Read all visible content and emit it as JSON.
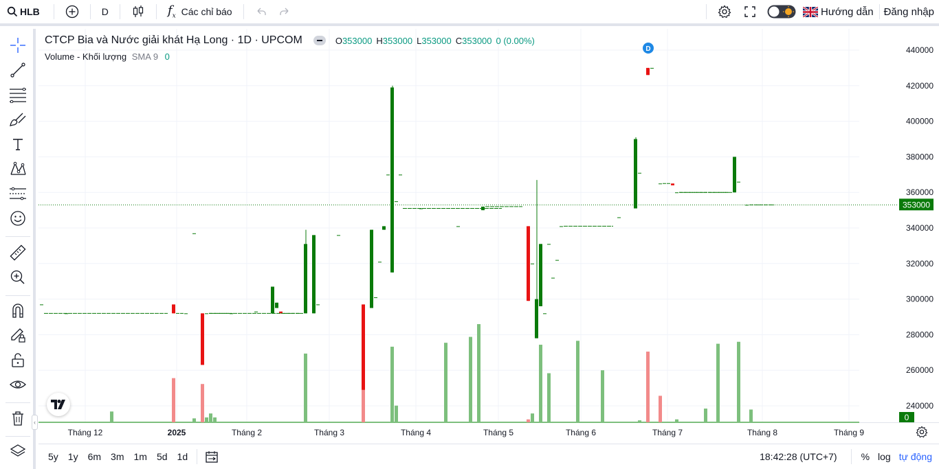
{
  "topbar": {
    "symbol": "HLB",
    "interval": "D",
    "indicators_label": "Các chỉ báo",
    "guide_label": "Hướng dẫn",
    "login_label": "Đăng nhập"
  },
  "legend": {
    "title": "CTCP Bia và Nước giải khát Hạ Long · 1D · UPCOM",
    "o_key": "O",
    "o_val": "353000",
    "h_key": "H",
    "h_val": "353000",
    "l_key": "L",
    "l_val": "353000",
    "c_key": "C",
    "c_val": "353000",
    "change": "0 (0.00%)",
    "volume_name": "Volume - Khối lượng",
    "volume_sma": "SMA 9",
    "volume_val": "0"
  },
  "bottombar": {
    "ranges": [
      "5y",
      "1y",
      "6m",
      "3m",
      "1m",
      "5d",
      "1d"
    ],
    "time": "18:42:28 (UTC+7)",
    "pct": "%",
    "log": "log",
    "auto": "tự động"
  },
  "colors": {
    "up": "#0a7a0a",
    "down": "#e81313",
    "vol_up": "#7dbf7d",
    "vol_down": "#f28a8a",
    "accent": "#2962ff"
  },
  "chart_data": {
    "type": "candlestick",
    "price_axis": {
      "ticks": [
        240000,
        260000,
        280000,
        300000,
        320000,
        340000,
        360000,
        380000,
        400000,
        420000,
        440000
      ],
      "min": 230000,
      "max": 450000
    },
    "last_price": 353000,
    "last_price_label": "353000",
    "volume_last_label": "0",
    "dividend_marker": "D",
    "x_ticks": [
      "Tháng 12",
      "2025",
      "Tháng 2",
      "Tháng 3",
      "Tháng 4",
      "Tháng 5",
      "Tháng 6",
      "Tháng 7",
      "Tháng 8",
      "Tháng 9"
    ],
    "highlights": [
      {
        "label": "Tháng 12",
        "x": 68
      },
      {
        "label": "2025",
        "x": 201
      },
      {
        "label": "Tháng 2",
        "x": 303
      },
      {
        "label": "Tháng 3",
        "x": 423
      },
      {
        "label": "Tháng 4",
        "x": 549
      },
      {
        "label": "Tháng 5",
        "x": 669
      },
      {
        "label": "Tháng 6",
        "x": 789
      },
      {
        "label": "Tháng 7",
        "x": 915
      },
      {
        "label": "Tháng 8",
        "x": 1053
      },
      {
        "label": "Tháng 9",
        "x": 1179
      }
    ],
    "candles": [
      {
        "i": 0,
        "o": 297000,
        "h": 297000,
        "l": 297000,
        "c": 297000
      },
      {
        "i": 6,
        "o": 292000,
        "h": 292000,
        "l": 292000,
        "c": 292000
      },
      {
        "i": 32,
        "o": 297000,
        "h": 297000,
        "l": 292000,
        "c": 292000
      },
      {
        "i": 35,
        "o": 292000,
        "h": 292000,
        "l": 292000,
        "c": 292000
      },
      {
        "i": 37,
        "o": 337000,
        "h": 337000,
        "l": 337000,
        "c": 337000
      },
      {
        "i": 39,
        "o": 292000,
        "h": 292000,
        "l": 263000,
        "c": 263000
      },
      {
        "i": 40,
        "o": 292000,
        "h": 292000,
        "l": 292000,
        "c": 292000
      },
      {
        "i": 46,
        "o": 292000,
        "h": 292000,
        "l": 292000,
        "c": 292000
      },
      {
        "i": 52,
        "o": 293000,
        "h": 293000,
        "l": 293000,
        "c": 293000
      },
      {
        "i": 56,
        "o": 292000,
        "h": 307000,
        "l": 292000,
        "c": 307000
      },
      {
        "i": 57,
        "o": 295000,
        "h": 298000,
        "l": 295000,
        "c": 298000
      },
      {
        "i": 58,
        "o": 293000,
        "h": 293000,
        "l": 292000,
        "c": 292000
      },
      {
        "i": 64,
        "o": 292000,
        "h": 339000,
        "l": 292000,
        "c": 331000
      },
      {
        "i": 66,
        "o": 292000,
        "h": 336000,
        "l": 292000,
        "c": 336000
      },
      {
        "i": 67,
        "o": 297000,
        "h": 297000,
        "l": 297000,
        "c": 297000
      },
      {
        "i": 72,
        "o": 336000,
        "h": 336000,
        "l": 336000,
        "c": 336000
      },
      {
        "i": 78,
        "o": 297000,
        "h": 297000,
        "l": 249000,
        "c": 249000
      },
      {
        "i": 80,
        "o": 295000,
        "h": 339000,
        "l": 295000,
        "c": 339000
      },
      {
        "i": 81,
        "o": 301000,
        "h": 301000,
        "l": 301000,
        "c": 301000
      },
      {
        "i": 82,
        "o": 321000,
        "h": 321000,
        "l": 321000,
        "c": 321000
      },
      {
        "i": 83,
        "o": 339000,
        "h": 341000,
        "l": 339000,
        "c": 341000
      },
      {
        "i": 84,
        "o": 370000,
        "h": 370000,
        "l": 370000,
        "c": 370000
      },
      {
        "i": 85,
        "o": 315000,
        "h": 420000,
        "l": 315000,
        "c": 419000
      },
      {
        "i": 86,
        "o": 355000,
        "h": 355000,
        "l": 355000,
        "c": 355000
      },
      {
        "i": 87,
        "o": 370000,
        "h": 370000,
        "l": 370000,
        "c": 370000
      },
      {
        "i": 92,
        "o": 351000,
        "h": 351000,
        "l": 351000,
        "c": 351000
      },
      {
        "i": 101,
        "o": 341000,
        "h": 341000,
        "l": 341000,
        "c": 341000
      },
      {
        "i": 107,
        "o": 350000,
        "h": 352000,
        "l": 350000,
        "c": 352000
      },
      {
        "i": 118,
        "o": 341000,
        "h": 341000,
        "l": 299000,
        "c": 299000
      },
      {
        "i": 119,
        "o": 320000,
        "h": 320000,
        "l": 320000,
        "c": 320000
      },
      {
        "i": 120,
        "o": 278000,
        "h": 367000,
        "l": 278000,
        "c": 300000
      },
      {
        "i": 121,
        "o": 296000,
        "h": 331000,
        "l": 296000,
        "c": 331000
      },
      {
        "i": 122,
        "o": 292000,
        "h": 292000,
        "l": 292000,
        "c": 292000
      },
      {
        "i": 123,
        "o": 331000,
        "h": 331000,
        "l": 331000,
        "c": 331000
      },
      {
        "i": 124,
        "o": 312000,
        "h": 312000,
        "l": 312000,
        "c": 312000
      },
      {
        "i": 125,
        "o": 322000,
        "h": 322000,
        "l": 322000,
        "c": 322000
      },
      {
        "i": 126,
        "o": 341000,
        "h": 341000,
        "l": 341000,
        "c": 341000
      },
      {
        "i": 140,
        "o": 346000,
        "h": 346000,
        "l": 346000,
        "c": 346000
      },
      {
        "i": 144,
        "o": 351000,
        "h": 391000,
        "l": 351000,
        "c": 390000
      },
      {
        "i": 145,
        "o": 371000,
        "h": 371000,
        "l": 371000,
        "c": 371000
      },
      {
        "i": 147,
        "o": 430000,
        "h": 430000,
        "l": 426000,
        "c": 426000
      },
      {
        "i": 148,
        "o": 430000,
        "h": 430000,
        "l": 430000,
        "c": 430000
      },
      {
        "i": 150,
        "o": 365000,
        "h": 365000,
        "l": 365000,
        "c": 365000
      },
      {
        "i": 153,
        "o": 365000,
        "h": 365000,
        "l": 364000,
        "c": 364000
      },
      {
        "i": 154,
        "o": 360000,
        "h": 360000,
        "l": 360000,
        "c": 360000
      },
      {
        "i": 168,
        "o": 360000,
        "h": 380000,
        "l": 360000,
        "c": 380000
      },
      {
        "i": 169,
        "o": 366000,
        "h": 366000,
        "l": 366000,
        "c": 366000
      },
      {
        "i": 171,
        "o": 353000,
        "h": 353000,
        "l": 353000,
        "c": 353000
      }
    ],
    "volume_pct": [
      {
        "i": 17,
        "v": 0.11,
        "up": true
      },
      {
        "i": 32,
        "v": 0.45,
        "up": false
      },
      {
        "i": 37,
        "v": 0.04,
        "up": true
      },
      {
        "i": 39,
        "v": 0.39,
        "up": false
      },
      {
        "i": 40,
        "v": 0.05,
        "up": true
      },
      {
        "i": 41,
        "v": 0.09,
        "up": true
      },
      {
        "i": 42,
        "v": 0.05,
        "up": true
      },
      {
        "i": 64,
        "v": 0.7,
        "up": true
      },
      {
        "i": 78,
        "v": 0.46,
        "up": false
      },
      {
        "i": 85,
        "v": 0.77,
        "up": true
      },
      {
        "i": 86,
        "v": 0.17,
        "up": true
      },
      {
        "i": 98,
        "v": 0.81,
        "up": true
      },
      {
        "i": 104,
        "v": 0.87,
        "up": true
      },
      {
        "i": 106,
        "v": 1.0,
        "up": true
      },
      {
        "i": 118,
        "v": 0.03,
        "up": false
      },
      {
        "i": 119,
        "v": 0.09,
        "up": true
      },
      {
        "i": 121,
        "v": 0.79,
        "up": true
      },
      {
        "i": 123,
        "v": 0.5,
        "up": true
      },
      {
        "i": 130,
        "v": 0.83,
        "up": true
      },
      {
        "i": 136,
        "v": 0.53,
        "up": true
      },
      {
        "i": 145,
        "v": 0.02,
        "up": true
      },
      {
        "i": 147,
        "v": 0.72,
        "up": false
      },
      {
        "i": 150,
        "v": 0.27,
        "up": false
      },
      {
        "i": 154,
        "v": 0.03,
        "up": true
      },
      {
        "i": 161,
        "v": 0.14,
        "up": true
      },
      {
        "i": 164,
        "v": 0.8,
        "up": true
      },
      {
        "i": 169,
        "v": 0.82,
        "up": true
      },
      {
        "i": 172,
        "v": 0.13,
        "up": true
      }
    ]
  }
}
